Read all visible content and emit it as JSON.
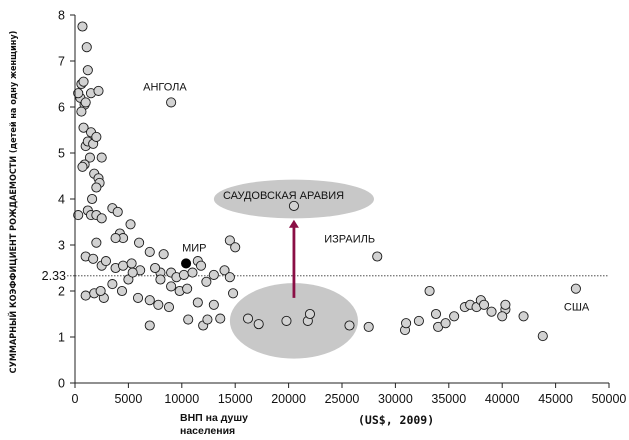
{
  "chart_data": {
    "type": "scatter",
    "ylabel": "СУММАРНЫЙ КОЭФФИЦИЕНТ РОЖДАЕМОСТИ (детей на одну женщину)",
    "xlabel_line1": "ВНП на душу",
    "xlabel_line2": "населения",
    "x_unit": "(US$, 2009)",
    "xlim": [
      0,
      50000
    ],
    "ylim": [
      0,
      8
    ],
    "x_ticks": [
      0,
      5000,
      10000,
      15000,
      20000,
      25000,
      30000,
      35000,
      40000,
      45000,
      50000
    ],
    "y_ticks": [
      0,
      1,
      2,
      3,
      4,
      5,
      6,
      7,
      8
    ],
    "reference_line": {
      "y": 2.33,
      "label": "2.33"
    },
    "highlight_point": {
      "label": "МИР",
      "x": 10400,
      "y": 2.6
    },
    "annotations": [
      {
        "label": "АНГОЛА",
        "x": 9000,
        "y": 6.1
      },
      {
        "label": "САУДОВСКАЯ АРАВИЯ",
        "x": 20500,
        "y": 3.85
      },
      {
        "label": "ИЗРАИЛЬ",
        "x": 28300,
        "y": 2.75
      },
      {
        "label": "США",
        "x": 46900,
        "y": 2.05
      }
    ],
    "highlight_ellipses": [
      {
        "label": "from",
        "cx": 20500,
        "cy": 1.35,
        "rx": 6000,
        "ry": 0.82
      },
      {
        "label": "to",
        "cx": 20500,
        "cy": 4.0,
        "rx": 7500,
        "ry": 0.42
      }
    ],
    "arrow": {
      "from": [
        20500,
        1.85
      ],
      "to": [
        20500,
        3.55
      ]
    },
    "points": [
      [
        500,
        6.2
      ],
      [
        600,
        6.5
      ],
      [
        700,
        7.75
      ],
      [
        900,
        6.05
      ],
      [
        1100,
        7.3
      ],
      [
        1200,
        6.8
      ],
      [
        800,
        6.55
      ],
      [
        1000,
        6.1
      ],
      [
        1500,
        6.3
      ],
      [
        2200,
        6.35
      ],
      [
        300,
        6.3
      ],
      [
        600,
        5.9
      ],
      [
        800,
        5.55
      ],
      [
        1000,
        5.15
      ],
      [
        1200,
        5.25
      ],
      [
        1500,
        5.45
      ],
      [
        1700,
        5.2
      ],
      [
        2000,
        5.35
      ],
      [
        1400,
        4.9
      ],
      [
        900,
        4.75
      ],
      [
        700,
        4.7
      ],
      [
        1800,
        4.55
      ],
      [
        2200,
        4.45
      ],
      [
        2300,
        4.35
      ],
      [
        1600,
        4.0
      ],
      [
        2000,
        4.25
      ],
      [
        2500,
        4.9
      ],
      [
        300,
        3.65
      ],
      [
        1200,
        3.75
      ],
      [
        1500,
        3.65
      ],
      [
        2000,
        3.65
      ],
      [
        2500,
        3.58
      ],
      [
        3500,
        3.8
      ],
      [
        4000,
        3.72
      ],
      [
        4200,
        3.25
      ],
      [
        4500,
        3.15
      ],
      [
        5200,
        3.45
      ],
      [
        6000,
        3.05
      ],
      [
        7000,
        2.85
      ],
      [
        3800,
        3.15
      ],
      [
        2000,
        3.05
      ],
      [
        2500,
        2.55
      ],
      [
        1000,
        2.75
      ],
      [
        1700,
        2.7
      ],
      [
        2900,
        2.65
      ],
      [
        3800,
        2.5
      ],
      [
        4500,
        2.55
      ],
      [
        5300,
        2.6
      ],
      [
        6100,
        2.45
      ],
      [
        8000,
        2.4
      ],
      [
        8300,
        2.8
      ],
      [
        9000,
        2.4
      ],
      [
        9500,
        2.3
      ],
      [
        10200,
        2.35
      ],
      [
        1000,
        1.9
      ],
      [
        1800,
        1.95
      ],
      [
        2700,
        1.85
      ],
      [
        2400,
        2.0
      ],
      [
        3500,
        2.15
      ],
      [
        4400,
        2.0
      ],
      [
        5000,
        2.25
      ],
      [
        5400,
        2.4
      ],
      [
        7500,
        2.5
      ],
      [
        8000,
        2.25
      ],
      [
        9000,
        2.1
      ],
      [
        9800,
        2.0
      ],
      [
        10500,
        2.05
      ],
      [
        11000,
        2.4
      ],
      [
        11500,
        2.65
      ],
      [
        11800,
        2.55
      ],
      [
        12300,
        2.2
      ],
      [
        13000,
        2.35
      ],
      [
        14000,
        2.45
      ],
      [
        14500,
        2.3
      ],
      [
        14500,
        3.1
      ],
      [
        15000,
        2.95
      ],
      [
        5900,
        1.85
      ],
      [
        7000,
        1.8
      ],
      [
        7800,
        1.7
      ],
      [
        8800,
        1.65
      ],
      [
        7000,
        1.25
      ],
      [
        10600,
        1.38
      ],
      [
        11500,
        1.75
      ],
      [
        12000,
        1.25
      ],
      [
        12400,
        1.38
      ],
      [
        13000,
        1.7
      ],
      [
        13600,
        1.4
      ],
      [
        14800,
        1.95
      ],
      [
        16200,
        1.4
      ],
      [
        17200,
        1.28
      ],
      [
        19800,
        1.35
      ],
      [
        21800,
        1.35
      ],
      [
        22000,
        1.5
      ],
      [
        25700,
        1.25
      ],
      [
        27500,
        1.22
      ],
      [
        30900,
        1.15
      ],
      [
        31000,
        1.3
      ],
      [
        32200,
        1.35
      ],
      [
        33200,
        2.0
      ],
      [
        33800,
        1.5
      ],
      [
        34000,
        1.22
      ],
      [
        34700,
        1.3
      ],
      [
        35500,
        1.45
      ],
      [
        36500,
        1.65
      ],
      [
        37000,
        1.7
      ],
      [
        37600,
        1.65
      ],
      [
        38000,
        1.8
      ],
      [
        38300,
        1.7
      ],
      [
        39000,
        1.55
      ],
      [
        40300,
        1.6
      ],
      [
        40000,
        1.45
      ],
      [
        42000,
        1.45
      ],
      [
        43800,
        1.02
      ],
      [
        40300,
        1.7
      ]
    ]
  }
}
